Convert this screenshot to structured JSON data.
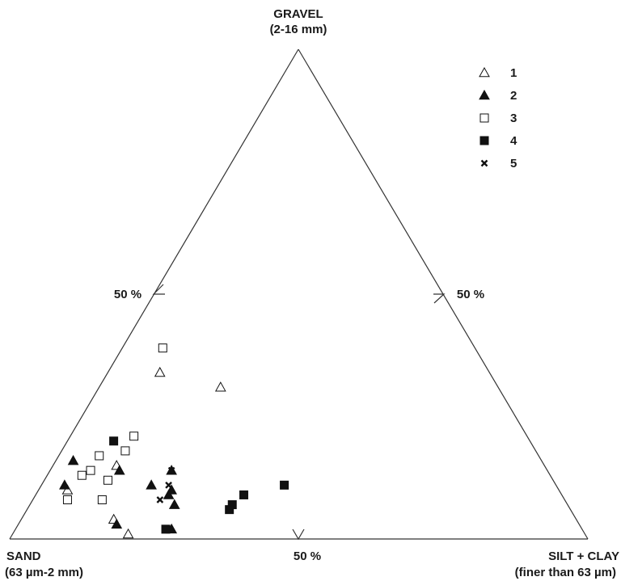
{
  "chart_data": {
    "type": "scatter",
    "subtype": "ternary",
    "vertices": {
      "top": {
        "line1": "GRAVEL",
        "line2": "(2-16 mm)"
      },
      "left": {
        "line1": "SAND",
        "line2": "(63 µm-2 mm)"
      },
      "right": {
        "line1": "SILT + CLAY",
        "line2": "(finer than 63 µm)"
      }
    },
    "midpoint_labels": {
      "left": "50 %",
      "right": "50 %",
      "bottom": "50 %"
    },
    "components": [
      "gravel",
      "sand",
      "silt_clay"
    ],
    "series": [
      {
        "name": "1",
        "marker": "triangle-open",
        "points": [
          {
            "gravel": 34,
            "sand": 57,
            "silt_clay": 9
          },
          {
            "gravel": 31,
            "sand": 48,
            "silt_clay": 21
          },
          {
            "gravel": 15,
            "sand": 74,
            "silt_clay": 11
          },
          {
            "gravel": 10,
            "sand": 85,
            "silt_clay": 5
          },
          {
            "gravel": 4,
            "sand": 80,
            "silt_clay": 16
          },
          {
            "gravel": 1,
            "sand": 79,
            "silt_clay": 20
          }
        ]
      },
      {
        "name": "2",
        "marker": "triangle-filled",
        "points": [
          {
            "gravel": 16,
            "sand": 81,
            "silt_clay": 3
          },
          {
            "gravel": 14,
            "sand": 74,
            "silt_clay": 12
          },
          {
            "gravel": 14,
            "sand": 65,
            "silt_clay": 21
          },
          {
            "gravel": 11,
            "sand": 85,
            "silt_clay": 4
          },
          {
            "gravel": 11,
            "sand": 70,
            "silt_clay": 19
          },
          {
            "gravel": 10,
            "sand": 67,
            "silt_clay": 23
          },
          {
            "gravel": 9,
            "sand": 68,
            "silt_clay": 23
          },
          {
            "gravel": 7,
            "sand": 68,
            "silt_clay": 25
          },
          {
            "gravel": 3,
            "sand": 80,
            "silt_clay": 17
          },
          {
            "gravel": 2,
            "sand": 71,
            "silt_clay": 27
          }
        ]
      },
      {
        "name": "3",
        "marker": "square-open",
        "points": [
          {
            "gravel": 39,
            "sand": 54,
            "silt_clay": 7
          },
          {
            "gravel": 21,
            "sand": 68,
            "silt_clay": 11
          },
          {
            "gravel": 18,
            "sand": 71,
            "silt_clay": 11
          },
          {
            "gravel": 17,
            "sand": 76,
            "silt_clay": 7
          },
          {
            "gravel": 14,
            "sand": 79,
            "silt_clay": 7
          },
          {
            "gravel": 13,
            "sand": 81,
            "silt_clay": 6
          },
          {
            "gravel": 12,
            "sand": 77,
            "silt_clay": 11
          },
          {
            "gravel": 8,
            "sand": 80,
            "silt_clay": 12
          },
          {
            "gravel": 8,
            "sand": 86,
            "silt_clay": 6
          }
        ]
      },
      {
        "name": "4",
        "marker": "square-filled",
        "points": [
          {
            "gravel": 20,
            "sand": 72,
            "silt_clay": 8
          },
          {
            "gravel": 11,
            "sand": 47,
            "silt_clay": 42
          },
          {
            "gravel": 9,
            "sand": 55,
            "silt_clay": 36
          },
          {
            "gravel": 7,
            "sand": 58,
            "silt_clay": 35
          },
          {
            "gravel": 6,
            "sand": 59,
            "silt_clay": 35
          },
          {
            "gravel": 2,
            "sand": 72,
            "silt_clay": 26
          }
        ]
      },
      {
        "name": "5",
        "marker": "x",
        "points": [
          {
            "gravel": 14,
            "sand": 65,
            "silt_clay": 21
          },
          {
            "gravel": 11,
            "sand": 67,
            "silt_clay": 22
          },
          {
            "gravel": 8,
            "sand": 70,
            "silt_clay": 22
          }
        ]
      }
    ],
    "legend_position": "top-right",
    "grid": false
  }
}
